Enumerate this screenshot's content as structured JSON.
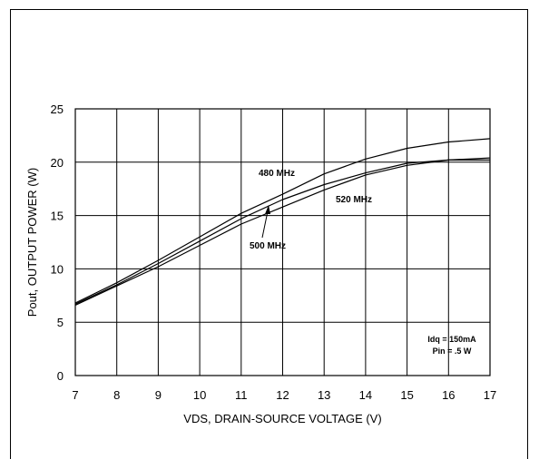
{
  "chart_data": {
    "type": "line",
    "xlabel": "VDS, DRAIN-SOURCE VOLTAGE (V)",
    "ylabel": "Pout, OUTPUT POWER (W)",
    "xlim": [
      7,
      17
    ],
    "ylim": [
      0,
      25
    ],
    "x_ticks": [
      7,
      8,
      9,
      10,
      11,
      12,
      13,
      14,
      15,
      16,
      17
    ],
    "y_ticks": [
      0,
      5,
      10,
      15,
      20,
      25
    ],
    "grid": true,
    "series": [
      {
        "name": "480 MHz",
        "x": [
          7,
          8,
          9,
          10,
          11,
          12,
          13,
          14,
          15,
          16,
          17
        ],
        "values": [
          6.8,
          8.7,
          10.8,
          13.0,
          15.2,
          17.0,
          18.9,
          20.3,
          21.3,
          21.9,
          22.2
        ]
      },
      {
        "name": "500 MHz",
        "x": [
          7,
          8,
          9,
          10,
          11,
          12,
          13,
          14,
          15,
          16,
          17
        ],
        "values": [
          6.7,
          8.5,
          10.5,
          12.6,
          14.7,
          16.5,
          17.9,
          19.0,
          19.9,
          20.2,
          20.2
        ]
      },
      {
        "name": "520 MHz",
        "x": [
          7,
          8,
          9,
          10,
          11,
          12,
          13,
          14,
          15,
          16,
          17
        ],
        "values": [
          6.6,
          8.4,
          10.2,
          12.2,
          14.2,
          15.8,
          17.4,
          18.8,
          19.7,
          20.2,
          20.4
        ]
      }
    ],
    "annotations": [
      "Idq = 150mA",
      "Pin = .5 W"
    ]
  }
}
